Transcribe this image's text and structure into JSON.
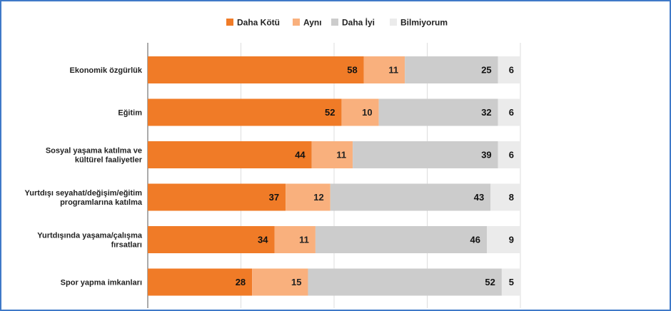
{
  "chart_data": {
    "type": "bar",
    "orientation": "horizontal",
    "stacked": true,
    "xlim": [
      0,
      100
    ],
    "grid": true,
    "legend_position": "top",
    "categories": [
      [
        "Ekonomik özgürlük"
      ],
      [
        "Eğitim"
      ],
      [
        "Sosyal yaşama katılma ve",
        "kültürel faaliyetler"
      ],
      [
        "Yurtdışı seyahat/değişim/eğitim",
        "programlarına katılma"
      ],
      [
        "Yurtdışında yaşama/çalışma",
        "fırsatları"
      ],
      [
        "Spor yapma imkanları"
      ]
    ],
    "series": [
      {
        "name": "Daha Kötü",
        "color": "#f07b27",
        "label_color": "#111111",
        "values": [
          58,
          52,
          44,
          37,
          34,
          28
        ]
      },
      {
        "name": "Aynı",
        "color": "#f9b07d",
        "label_color": "#222222",
        "values": [
          11,
          10,
          11,
          12,
          11,
          15
        ]
      },
      {
        "name": "Daha İyi",
        "color": "#cccccc",
        "label_color": "#111111",
        "values": [
          25,
          32,
          39,
          43,
          46,
          52
        ]
      },
      {
        "name": "Bilmiyorum",
        "color": "#ebebeb",
        "label_color": "#111111",
        "values": [
          6,
          6,
          6,
          8,
          9,
          5
        ]
      }
    ]
  }
}
